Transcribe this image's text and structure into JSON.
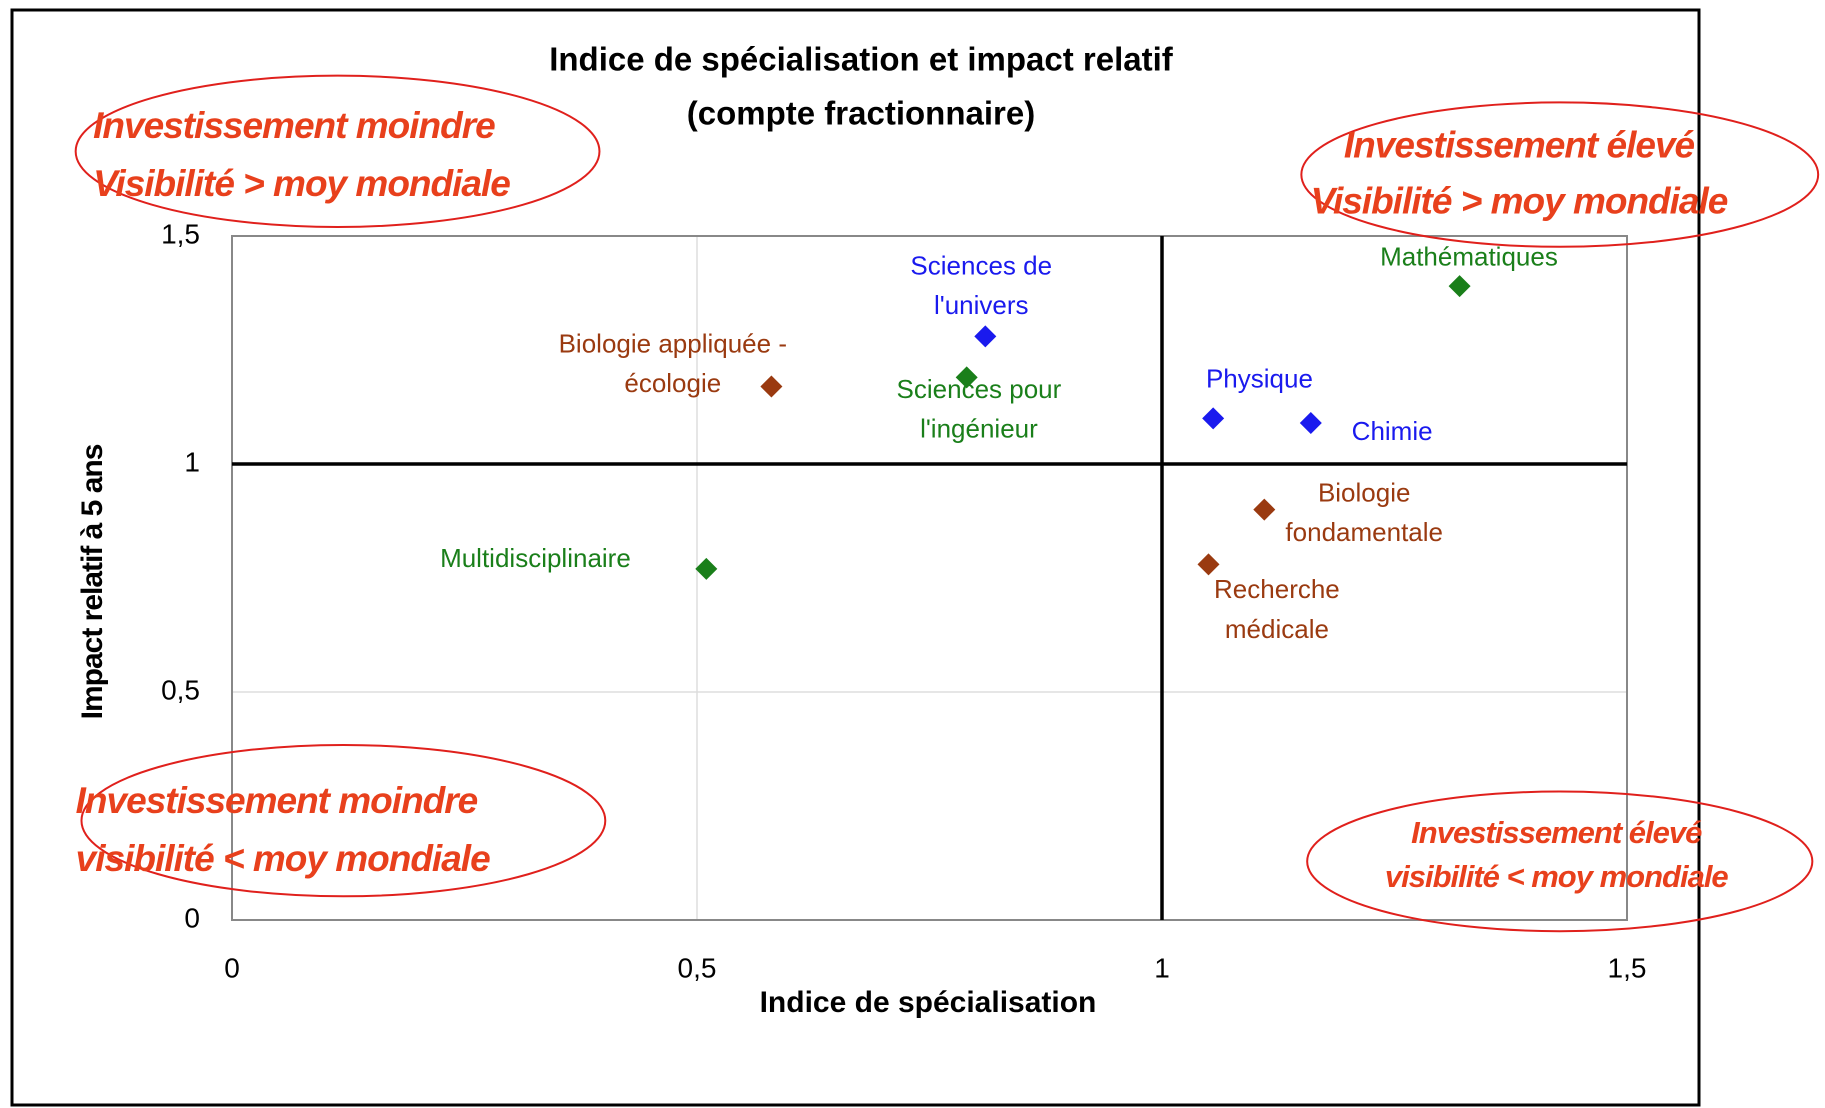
{
  "chart_data": {
    "type": "scatter",
    "title": [
      "Indice de spécialisation et impact relatif",
      "(compte fractionnaire)"
    ],
    "x_label": "Indice de spécialisation",
    "y_label": "Impact relatif à 5 ans",
    "xlim": [
      0,
      1.5
    ],
    "ylim": [
      0,
      1.5
    ],
    "xticks": [
      0,
      {
        "value": 0.5,
        "label": "0,5"
      },
      1,
      {
        "value": 1.5,
        "label": "1,5"
      }
    ],
    "yticks": [
      0,
      {
        "value": 0.5,
        "label": "0,5"
      },
      1,
      {
        "value": 1.5,
        "label": "1,5"
      }
    ],
    "grid": true,
    "reference_lines": {
      "x": 1,
      "y": 1
    },
    "points": [
      {
        "label": [
          "Mathématiques"
        ],
        "x": 1.32,
        "y": 1.39,
        "color": "#1a7f1a"
      },
      {
        "label": [
          "Sciences de",
          "l'univers"
        ],
        "x": 0.81,
        "y": 1.28,
        "color": "#1a1aee"
      },
      {
        "label": [
          "Biologie appliquée -",
          "écologie"
        ],
        "x": 0.58,
        "y": 1.17,
        "color": "#9a3a10"
      },
      {
        "label": [
          "Sciences pour",
          "l'ingénieur"
        ],
        "x": 0.79,
        "y": 1.19,
        "color": "#1a7f1a"
      },
      {
        "label": [
          "Physique"
        ],
        "x": 1.055,
        "y": 1.1,
        "color": "#1a1aee"
      },
      {
        "label": [
          "Chimie"
        ],
        "x": 1.16,
        "y": 1.09,
        "color": "#1a1aee"
      },
      {
        "label": [
          "Biologie",
          "fondamentale"
        ],
        "x": 1.11,
        "y": 0.9,
        "color": "#9a3a10"
      },
      {
        "label": [
          "Recherche",
          "médicale"
        ],
        "x": 1.05,
        "y": 0.78,
        "color": "#9a3a10"
      },
      {
        "label": [
          "Multidisciplinaire"
        ],
        "x": 0.51,
        "y": 0.77,
        "color": "#1a7f1a"
      }
    ],
    "annotations": [
      [
        "Investissement moindre",
        "Visibilité > moy mondiale"
      ],
      [
        "Investissement élevé",
        "Visibilité > moy mondiale"
      ],
      [
        "Investissement moindre",
        "visibilité  < moy mondiale"
      ],
      [
        "Investissement élevé",
        "visibilité  < moy mondiale"
      ]
    ],
    "annotation_color": "#e8401c"
  }
}
